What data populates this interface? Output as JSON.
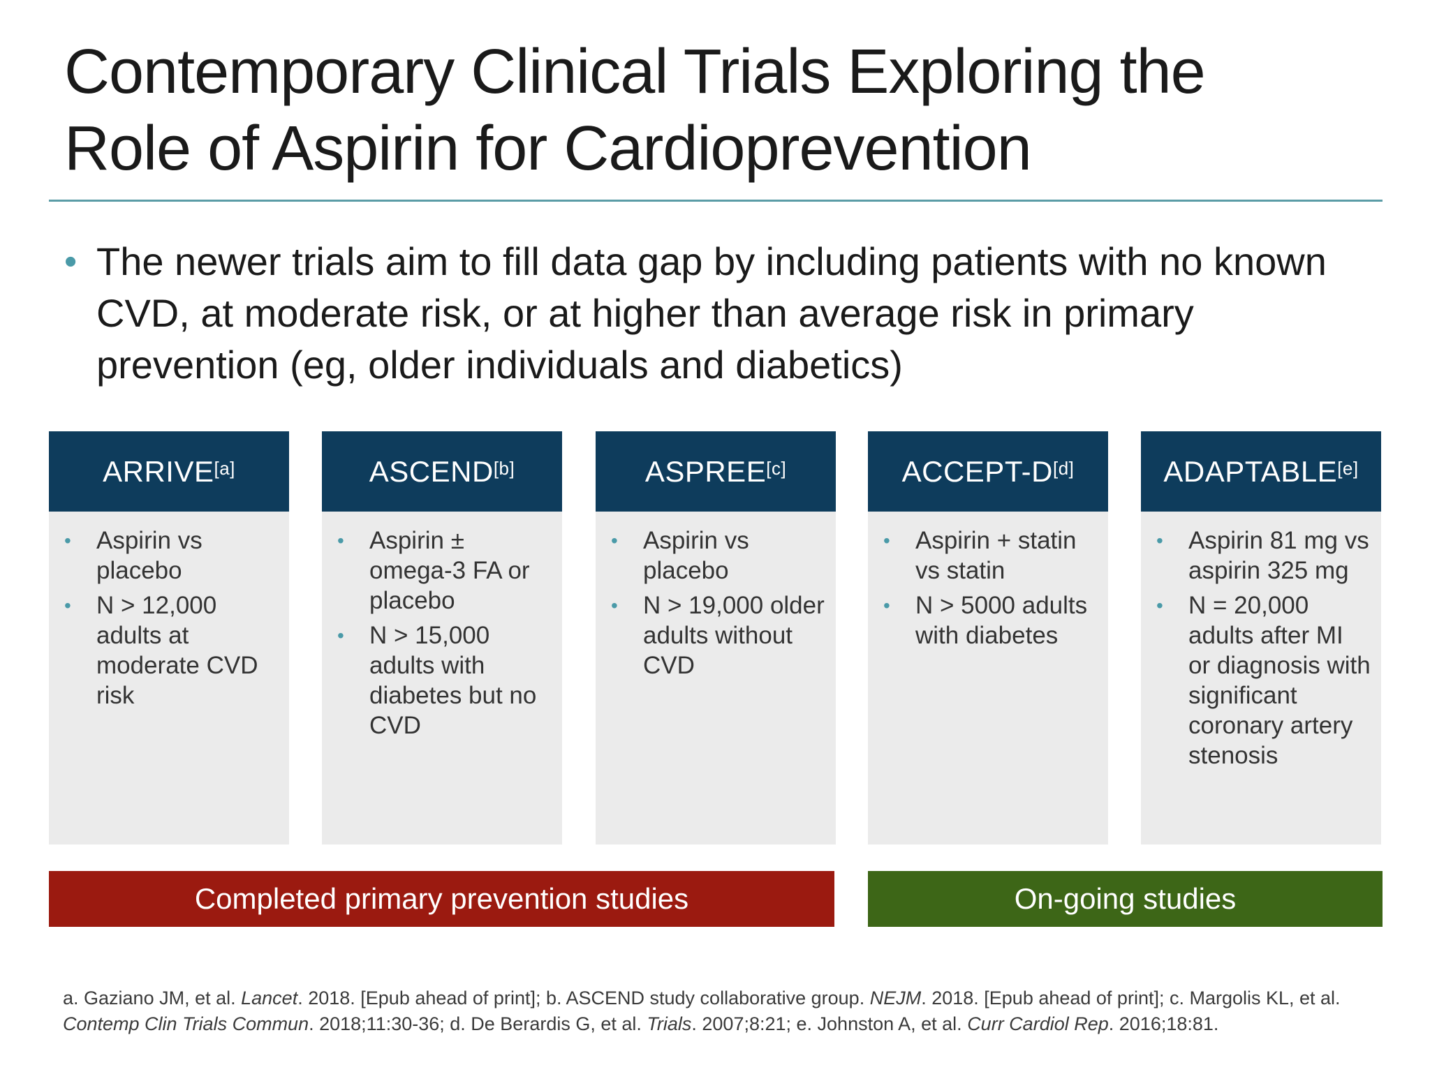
{
  "slide": {
    "title_line1": "Contemporary Clinical Trials Exploring the",
    "title_line2": "Role of Aspirin for Cardioprevention",
    "intro_bullet": "The newer trials aim to fill data gap by including patients with no known CVD, at moderate risk, or at higher than average risk in primary prevention (eg, older individuals and diabetics)"
  },
  "trials": [
    {
      "name": "ARRIVE",
      "ref": "[a]",
      "bullets": [
        "Aspirin vs placebo",
        "N > 12,000 adults at moderate CVD risk"
      ]
    },
    {
      "name": "ASCEND",
      "ref": "[b]",
      "bullets": [
        "Aspirin ± omega-3 FA or placebo",
        "N > 15,000 adults with diabetes but no CVD"
      ]
    },
    {
      "name": "ASPREE",
      "ref": "[c]",
      "bullets": [
        "Aspirin vs placebo",
        "N > 19,000 older adults without CVD"
      ]
    },
    {
      "name": "ACCEPT-D",
      "ref": "[d]",
      "bullets": [
        "Aspirin + statin vs statin",
        "N > 5000 adults with diabetes"
      ]
    },
    {
      "name": "ADAPTABLE",
      "ref": "[e]",
      "bullets": [
        "Aspirin 81 mg vs aspirin 325 mg",
        "N = 20,000 adults after MI or diagnosis with significant coronary artery stenosis"
      ]
    }
  ],
  "groups": {
    "completed": "Completed primary prevention studies",
    "ongoing": "On-going studies"
  },
  "references": {
    "a_pre": "a. Gaziano JM, et al. ",
    "a_journal": "Lancet",
    "a_post": ". 2018. [Epub ahead of print]; b. ASCEND study collaborative group. ",
    "b_journal": "NEJM",
    "b_post": ". 2018. [Epub ahead of print]; c. Margolis KL, et al. ",
    "c_journal": "Contemp Clin Trials Commun",
    "c_post": ". 2018;11:30-36; d. De Berardis G, et al. ",
    "d_journal": "Trials",
    "d_post": ". 2007;8:21; e. Johnston A, et al. ",
    "e_journal": "Curr Cardiol Rep",
    "e_post": ". 2016;18:81."
  },
  "colors": {
    "header_navy": "#0e3c5c",
    "completed_red": "#9b1a10",
    "ongoing_green": "#3d6617",
    "bullet_teal": "#4a9aa8",
    "rule_teal": "#5b9ca6",
    "card_gray": "#ebebeb"
  }
}
